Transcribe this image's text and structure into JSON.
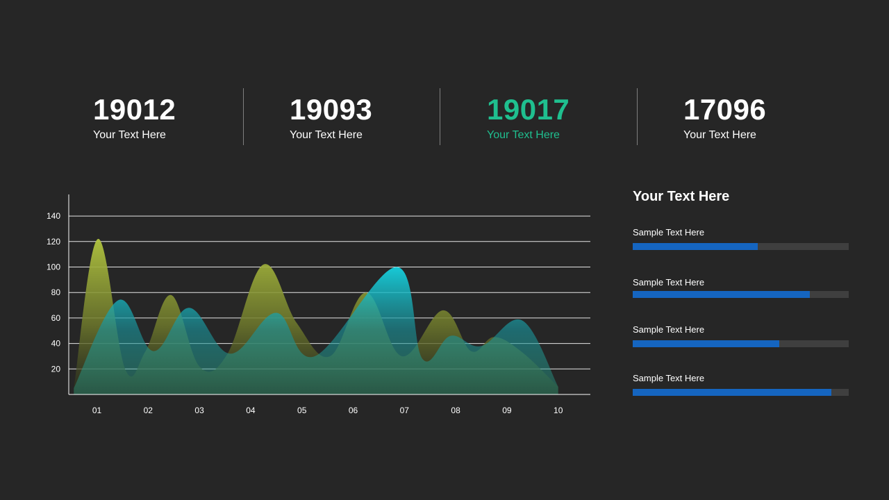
{
  "colors": {
    "background": "#262626",
    "accent_green": "#1fbf8f",
    "bar_fill": "#1565c0",
    "bar_track": "#3f3f3f",
    "series_olive": "#a4b83a",
    "series_teal": "#16c6d6"
  },
  "kpis": [
    {
      "value": "19012",
      "label": "Your Text Here"
    },
    {
      "value": "19093",
      "label": "Your Text Here"
    },
    {
      "value": "19017",
      "label": "Your Text Here"
    },
    {
      "value": "17096",
      "label": "Your Text Here"
    }
  ],
  "side_panel": {
    "title": "Your Text Here",
    "bars": [
      {
        "label": "Sample Text Here",
        "value": 0.58
      },
      {
        "label": "Sample Text Here",
        "value": 0.82
      },
      {
        "label": "Sample Text Here",
        "value": 0.68
      },
      {
        "label": "Sample Text Here",
        "value": 0.92
      }
    ]
  },
  "chart_data": {
    "type": "area",
    "categories": [
      "01",
      "02",
      "03",
      "04",
      "05",
      "06",
      "07",
      "08",
      "09",
      "10"
    ],
    "y_ticks": [
      20,
      40,
      60,
      80,
      100,
      120,
      140
    ],
    "ylim": [
      0,
      160
    ],
    "grid": true,
    "series": [
      {
        "color": "#a4b83a",
        "points": [
          [
            -0.45,
            5
          ],
          [
            0.02,
            122
          ],
          [
            0.55,
            20
          ],
          [
            0.95,
            34
          ],
          [
            1.45,
            78
          ],
          [
            2.0,
            22
          ],
          [
            2.55,
            32
          ],
          [
            3.25,
            102
          ],
          [
            3.9,
            56
          ],
          [
            4.55,
            30
          ],
          [
            5.25,
            80
          ],
          [
            5.95,
            30
          ],
          [
            6.75,
            66
          ],
          [
            7.3,
            34
          ],
          [
            7.75,
            45
          ],
          [
            8.3,
            33
          ],
          [
            9.0,
            6
          ]
        ]
      },
      {
        "color": "#16c6d6",
        "points": [
          [
            -0.45,
            5
          ],
          [
            0.42,
            74
          ],
          [
            1.1,
            34
          ],
          [
            1.8,
            68
          ],
          [
            2.6,
            32
          ],
          [
            3.5,
            64
          ],
          [
            4.25,
            30
          ],
          [
            5.85,
            100
          ],
          [
            6.35,
            28
          ],
          [
            6.9,
            46
          ],
          [
            7.5,
            38
          ],
          [
            8.3,
            58
          ],
          [
            9.0,
            6
          ]
        ]
      }
    ]
  }
}
